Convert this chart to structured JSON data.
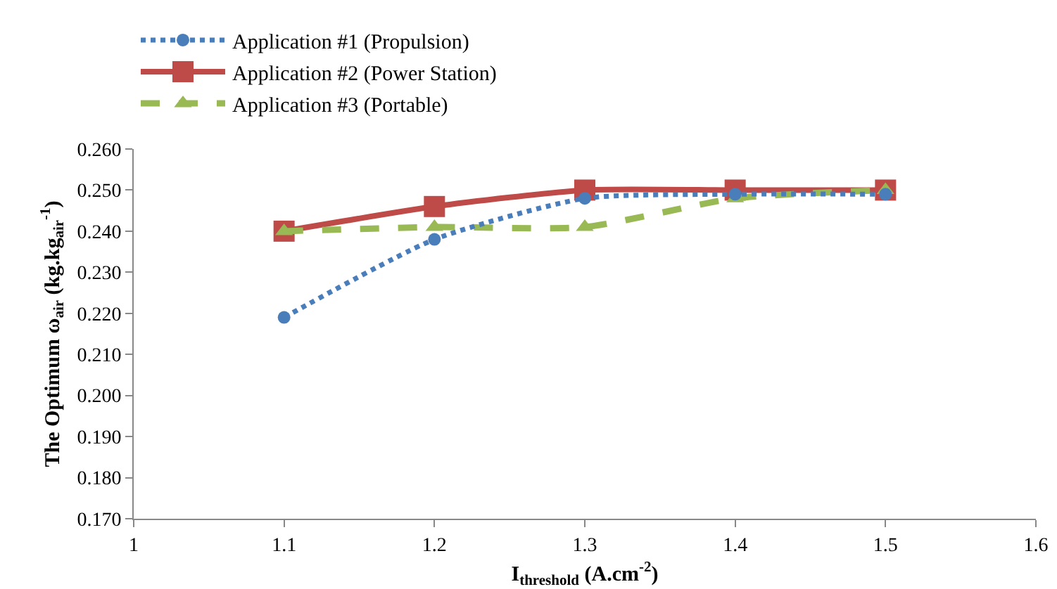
{
  "chart_data": {
    "type": "line",
    "xlabel": "I$_{threshold}$ (A.cm$^{-2}$)",
    "ylabel": "The Optimum ω$_{air}$ (kg.kg$_{air}$$^{-1}$)",
    "x": [
      1.1,
      1.2,
      1.3,
      1.4,
      1.5
    ],
    "series": [
      {
        "name": "Application #1 (Propulsion)",
        "color": "#4a7ebb",
        "values": [
          0.219,
          0.238,
          0.248,
          0.249,
          0.249
        ],
        "marker": "circle",
        "line_style": "dotted"
      },
      {
        "name": "Application #2 (Power Station)",
        "color": "#be4b48",
        "values": [
          0.24,
          0.246,
          0.25,
          0.25,
          0.25
        ],
        "marker": "square",
        "line_style": "solid"
      },
      {
        "name": "Application #3 (Portable)",
        "color": "#98b954",
        "values": [
          0.24,
          0.241,
          0.241,
          0.248,
          0.25
        ],
        "marker": "triangle",
        "line_style": "dashed"
      }
    ],
    "xlim": [
      1,
      1.6
    ],
    "xticks": [
      1,
      1.1,
      1.2,
      1.3,
      1.4,
      1.5,
      1.6
    ],
    "ylim": [
      0.17,
      0.26
    ],
    "yticks": [
      {
        "value": 0.17,
        "label": "0.170"
      },
      {
        "value": 0.18,
        "label": "0.180"
      },
      {
        "value": 0.19,
        "label": "0.190"
      },
      {
        "value": 0.2,
        "label": "0.200"
      },
      {
        "value": 0.21,
        "label": "0.210"
      },
      {
        "value": 0.22,
        "label": "0.220"
      },
      {
        "value": 0.23,
        "label": "0.230"
      },
      {
        "value": 0.24,
        "label": "0.240"
      },
      {
        "value": 0.25,
        "label": "0.250"
      },
      {
        "value": 0.26,
        "label": "0.260"
      }
    ],
    "grid": false,
    "legend": "top"
  }
}
